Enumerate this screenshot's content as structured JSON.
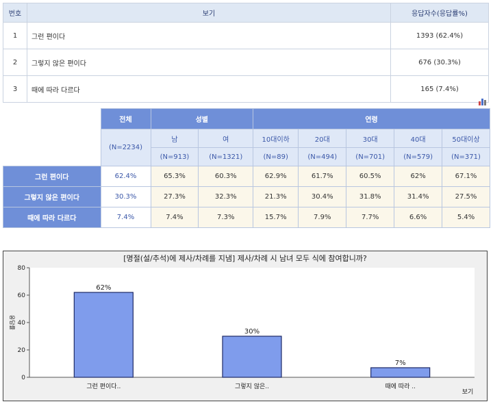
{
  "summary_table": {
    "headers": [
      "번호",
      "보기",
      "응답자수(응답률%)"
    ],
    "rows": [
      {
        "no": "1",
        "label": "그런 편이다",
        "value": "1393 (62.4%)"
      },
      {
        "no": "2",
        "label": "그렇지 않은 편이다",
        "value": "676 (30.3%)"
      },
      {
        "no": "3",
        "label": "때에 따라 다르다",
        "value": "165 (7.4%)"
      }
    ]
  },
  "cross_table": {
    "chart_icon": "bar-chart-icon",
    "group_headers": {
      "total": "전체",
      "gender": "성별",
      "age": "연령"
    },
    "total_n": "(N=2234)",
    "columns": [
      {
        "label": "남",
        "n": "(N=913)"
      },
      {
        "label": "여",
        "n": "(N=1321)"
      },
      {
        "label": "10대이하",
        "n": "(N=89)"
      },
      {
        "label": "20대",
        "n": "(N=494)"
      },
      {
        "label": "30대",
        "n": "(N=701)"
      },
      {
        "label": "40대",
        "n": "(N=579)"
      },
      {
        "label": "50대이상",
        "n": "(N=371)"
      }
    ],
    "rows": [
      {
        "label": "그런 편이다",
        "total": "62.4%",
        "values": [
          "65.3%",
          "60.3%",
          "62.9%",
          "61.7%",
          "60.5%",
          "62%",
          "67.1%"
        ]
      },
      {
        "label": "그렇지 않은 편이다",
        "total": "30.3%",
        "values": [
          "27.3%",
          "32.3%",
          "21.3%",
          "30.4%",
          "31.8%",
          "31.4%",
          "27.5%"
        ]
      },
      {
        "label": "때에 따라 다르다",
        "total": "7.4%",
        "values": [
          "7.4%",
          "7.3%",
          "15.7%",
          "7.9%",
          "7.7%",
          "6.6%",
          "5.4%"
        ]
      }
    ]
  },
  "chart_data": {
    "type": "bar",
    "title": "[명절(설/추석)에 제사/차례를 지냄] 제사/차례 시 남녀 모두 식에 참여합니까?",
    "categories": [
      "그런 편이다..",
      "그렇지 않은..",
      "때에 따라 .."
    ],
    "values": [
      62,
      30,
      7
    ],
    "data_labels": [
      "62%",
      "30%",
      "7%"
    ],
    "xlabel": "보기",
    "ylabel": "응답률",
    "ylim": [
      0,
      80
    ],
    "yticks": [
      0,
      20,
      40,
      60,
      80
    ],
    "bar_color": "#7f9cec",
    "grid": false
  }
}
